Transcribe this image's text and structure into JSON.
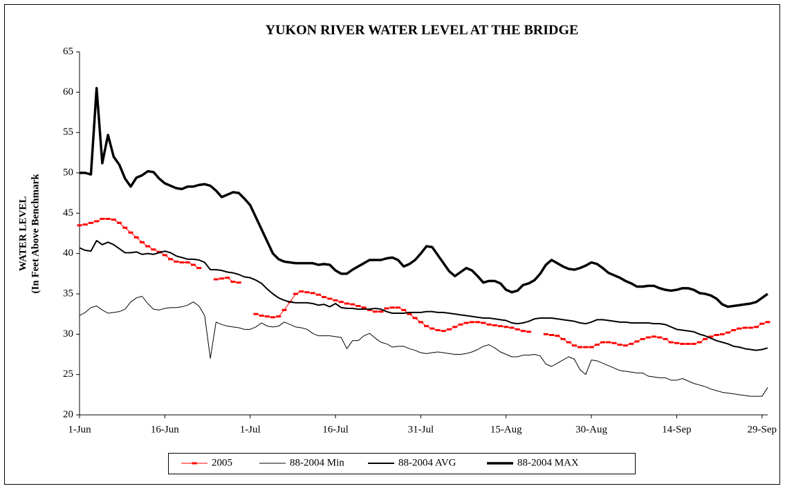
{
  "chart_data": {
    "type": "line",
    "title": "YUKON RIVER WATER LEVEL AT THE BRIDGE",
    "y_label": [
      "WATER LEVEL",
      "(In Feet Above Benchmark"
    ],
    "categories": [
      "1-Jun",
      null,
      null,
      null,
      null,
      null,
      null,
      null,
      null,
      null,
      null,
      null,
      null,
      null,
      null,
      "16-Jun",
      null,
      null,
      null,
      null,
      null,
      null,
      null,
      null,
      null,
      null,
      null,
      null,
      null,
      null,
      "1-Jul",
      null,
      null,
      null,
      null,
      null,
      null,
      null,
      null,
      null,
      null,
      null,
      null,
      null,
      null,
      "16-Jul",
      null,
      null,
      null,
      null,
      null,
      null,
      null,
      null,
      null,
      null,
      null,
      null,
      null,
      null,
      "31-Jul",
      null,
      null,
      null,
      null,
      null,
      null,
      null,
      null,
      null,
      null,
      null,
      null,
      null,
      null,
      "15-Aug",
      null,
      null,
      null,
      null,
      null,
      null,
      null,
      null,
      null,
      null,
      null,
      null,
      null,
      null,
      "30-Aug",
      null,
      null,
      null,
      null,
      null,
      null,
      null,
      null,
      null,
      null,
      null,
      null,
      null,
      null,
      "14-Sep",
      null,
      null,
      null,
      null,
      null,
      null,
      null,
      null,
      null,
      null,
      null,
      null,
      null,
      null,
      "29-Sep",
      null
    ],
    "ylim": [
      20,
      65
    ],
    "yticks": [
      20,
      25,
      30,
      35,
      40,
      45,
      50,
      55,
      60,
      65
    ],
    "grid": false,
    "legend": "bottom",
    "series": [
      {
        "name": "2005",
        "color": "#ff0000",
        "width": 1,
        "marker": "dash",
        "values": [
          43.5,
          43.6,
          43.8,
          44,
          44.3,
          44.3,
          44.2,
          43.8,
          43.2,
          42.6,
          42,
          41.4,
          40.9,
          40.5,
          40.2,
          39.8,
          39.3,
          39,
          38.9,
          38.9,
          38.6,
          38.2,
          null,
          null,
          36.8,
          36.9,
          37,
          36.5,
          36.4,
          null,
          null,
          32.5,
          32.3,
          32.2,
          32.1,
          32.2,
          33,
          34,
          35,
          35.3,
          35.2,
          35.1,
          34.9,
          34.6,
          34.4,
          34.2,
          34,
          33.8,
          33.7,
          33.5,
          33.3,
          33,
          32.8,
          32.8,
          33.2,
          33.3,
          33.3,
          33,
          32.5,
          32,
          31.5,
          31,
          30.7,
          30.5,
          30.4,
          30.6,
          30.9,
          31.2,
          31.4,
          31.5,
          31.5,
          31.4,
          31.2,
          31.1,
          31,
          30.9,
          30.8,
          30.6,
          30.4,
          30.3,
          null,
          null,
          30,
          29.9,
          29.8,
          29.4,
          29,
          28.6,
          28.4,
          28.4,
          28.4,
          28.7,
          29,
          29,
          28.9,
          28.7,
          28.6,
          28.8,
          29.1,
          29.4,
          29.6,
          29.7,
          29.6,
          29.4,
          29,
          28.9,
          28.8,
          28.8,
          28.8,
          29,
          29.4,
          29.7,
          29.9,
          30,
          30.2,
          30.5,
          30.7,
          30.8,
          30.8,
          30.9,
          31.3,
          31.5
        ]
      },
      {
        "name": "88-2004 Min",
        "color": "#000000",
        "width": 1,
        "values": [
          32.3,
          32.7,
          33.3,
          33.5,
          33,
          32.6,
          32.7,
          32.8,
          33.1,
          34,
          34.5,
          34.7,
          33.8,
          33.1,
          33,
          33.2,
          33.3,
          33.3,
          33.4,
          33.6,
          34,
          33.5,
          32.3,
          27,
          31.5,
          31.2,
          31,
          30.9,
          30.8,
          30.6,
          30.6,
          30.9,
          31.4,
          31,
          30.9,
          31,
          31.5,
          31.2,
          30.9,
          30.8,
          30.6,
          30.1,
          29.8,
          29.8,
          29.8,
          29.7,
          29.6,
          28.2,
          29.2,
          29.2,
          29.8,
          30.1,
          29.5,
          29,
          28.8,
          28.4,
          28.5,
          28.5,
          28.2,
          28,
          27.7,
          27.6,
          27.7,
          27.8,
          27.7,
          27.6,
          27.5,
          27.5,
          27.6,
          27.8,
          28.1,
          28.5,
          28.7,
          28.3,
          27.8,
          27.5,
          27.2,
          27.2,
          27.4,
          27.4,
          27.5,
          27.3,
          26.3,
          26,
          26.4,
          26.8,
          27.2,
          26.9,
          25.6,
          25,
          26.8,
          26.7,
          26.4,
          26.1,
          25.8,
          25.5,
          25.4,
          25.3,
          25.2,
          25.2,
          24.8,
          24.7,
          24.6,
          24.6,
          24.3,
          24.3,
          24.5,
          24.2,
          23.9,
          23.7,
          23.5,
          23.2,
          23,
          22.8,
          22.7,
          22.6,
          22.5,
          22.4,
          22.3,
          22.3,
          22.3,
          23.4
        ]
      },
      {
        "name": "88-2004 AVG",
        "color": "#000000",
        "width": 2,
        "values": [
          40.7,
          40.4,
          40.3,
          41.6,
          41.1,
          41.4,
          41.1,
          40.6,
          40.1,
          40.1,
          40.2,
          39.9,
          40,
          39.9,
          40.1,
          40.3,
          40.1,
          39.7,
          39.5,
          39.3,
          39.3,
          39.2,
          38.9,
          38,
          38,
          37.9,
          37.7,
          37.6,
          37.4,
          37.1,
          37,
          36.7,
          36.3,
          35.6,
          35,
          34.5,
          34.2,
          34,
          33.9,
          33.9,
          33.9,
          33.8,
          33.6,
          33.7,
          33.4,
          33.8,
          33.3,
          33.2,
          33.2,
          33.1,
          33.1,
          33.1,
          33.2,
          33.1,
          32.8,
          32.6,
          32.6,
          32.6,
          32.7,
          32.7,
          32.7,
          32.8,
          32.8,
          32.7,
          32.7,
          32.6,
          32.5,
          32.4,
          32.3,
          32.2,
          32.1,
          32,
          32,
          31.9,
          31.8,
          31.7,
          31.4,
          31.3,
          31.4,
          31.6,
          31.9,
          32,
          32,
          32,
          31.9,
          31.8,
          31.7,
          31.6,
          31.4,
          31.3,
          31.5,
          31.8,
          31.8,
          31.7,
          31.6,
          31.5,
          31.5,
          31.4,
          31.4,
          31.4,
          31.4,
          31.3,
          31.3,
          31.2,
          30.9,
          30.6,
          30.5,
          30.4,
          30.3,
          30,
          29.8,
          29.5,
          29.2,
          29,
          28.8,
          28.5,
          28.4,
          28.2,
          28.1,
          28,
          28.1,
          28.3
        ]
      },
      {
        "name": "88-2004 MAX",
        "color": "#000000",
        "width": 3.5,
        "values": [
          50,
          50,
          49.8,
          60.5,
          51.2,
          54.7,
          52,
          51,
          49.3,
          48.3,
          49.4,
          49.7,
          50.2,
          50.1,
          49.3,
          48.7,
          48.4,
          48.1,
          48,
          48.3,
          48.3,
          48.5,
          48.6,
          48.4,
          47.8,
          47,
          47.3,
          47.6,
          47.5,
          46.8,
          46,
          44.5,
          43,
          41.5,
          40,
          39.3,
          39,
          38.9,
          38.8,
          38.8,
          38.8,
          38.8,
          38.6,
          38.7,
          38.6,
          37.9,
          37.5,
          37.5,
          38,
          38.4,
          38.8,
          39.2,
          39.2,
          39.2,
          39.4,
          39.5,
          39.2,
          38.4,
          38.7,
          39.2,
          40,
          40.9,
          40.8,
          39.8,
          38.8,
          37.8,
          37.2,
          37.7,
          38.2,
          37.9,
          37.2,
          36.4,
          36.6,
          36.6,
          36.3,
          35.5,
          35.2,
          35.4,
          36.1,
          36.3,
          36.7,
          37.5,
          38.6,
          39.2,
          38.8,
          38.4,
          38.1,
          38,
          38.2,
          38.5,
          38.9,
          38.7,
          38.2,
          37.6,
          37.3,
          37,
          36.6,
          36.3,
          35.9,
          35.9,
          36,
          36,
          35.7,
          35.5,
          35.4,
          35.5,
          35.7,
          35.7,
          35.5,
          35.1,
          35,
          34.8,
          34.4,
          33.7,
          33.4,
          33.5,
          33.6,
          33.7,
          33.8,
          34,
          34.5,
          35
        ]
      }
    ]
  }
}
